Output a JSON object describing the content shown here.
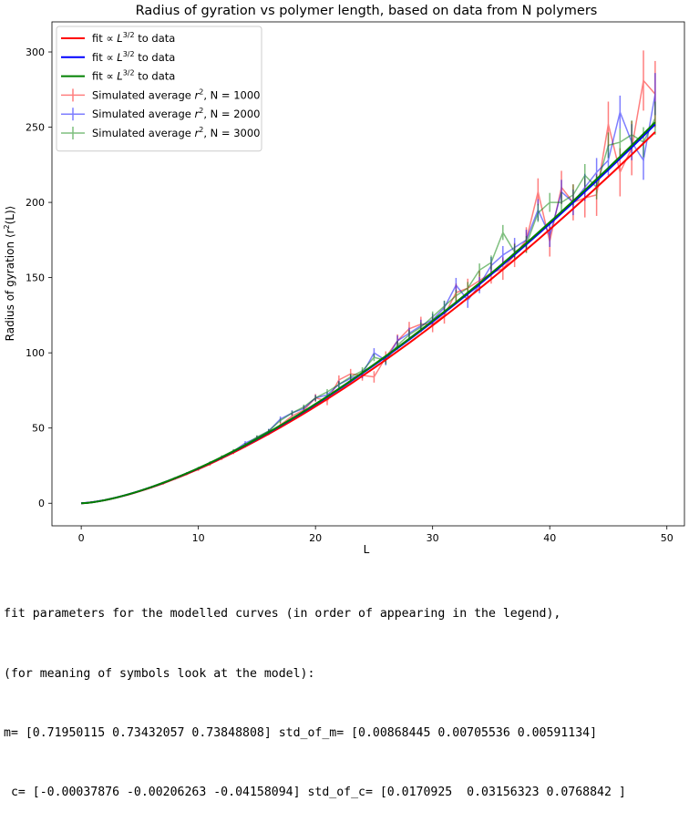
{
  "chart_data": {
    "type": "line",
    "title": "Radius of gyration vs polymer length, based on data from N polymers",
    "xlabel": "L",
    "ylabel": "Radius of gyration ⟨r²(L)⟩",
    "xlim": [
      -2.5,
      51.5
    ],
    "ylim": [
      -15,
      320
    ],
    "xticks": [
      0,
      10,
      20,
      30,
      40,
      50
    ],
    "yticks": [
      0,
      50,
      100,
      150,
      200,
      250,
      300
    ],
    "grid": false,
    "legend_position": "top-left",
    "fit_series": [
      {
        "name": "fit ∝ L^{3/2} to data",
        "name_prefix": "fit ∝ ",
        "name_base": "L",
        "name_sup": "3/2",
        "name_suffix": " to data",
        "color": "#ff0000",
        "m": 0.71950115,
        "c": -0.00037876
      },
      {
        "name": "fit ∝ L^{3/2} to data",
        "name_prefix": "fit ∝ ",
        "name_base": "L",
        "name_sup": "3/2",
        "name_suffix": " to data",
        "color": "#0000ff",
        "m": 0.73432057,
        "c": -0.00206263
      },
      {
        "name": "fit ∝ L^{3/2} to data",
        "name_prefix": "fit ∝ ",
        "name_base": "L",
        "name_sup": "3/2",
        "name_suffix": " to data",
        "color": "#008000",
        "m": 0.73848808,
        "c": -0.04158094
      }
    ],
    "data_series": [
      {
        "name": "Simulated average r², N = 1000",
        "name_prefix": "Simulated average ",
        "name_base": "r",
        "name_sup": "2",
        "name_suffix": ", N = 1000",
        "color": "#ff0000",
        "alpha": 0.5,
        "x": [
          0,
          1,
          2,
          3,
          4,
          5,
          6,
          7,
          8,
          9,
          10,
          11,
          12,
          13,
          14,
          15,
          16,
          17,
          18,
          19,
          20,
          21,
          22,
          23,
          24,
          25,
          26,
          27,
          28,
          29,
          30,
          31,
          32,
          33,
          34,
          35,
          36,
          37,
          38,
          39,
          40,
          41,
          42,
          43,
          44,
          45,
          46,
          47,
          48,
          49
        ],
        "y": [
          0,
          0.8,
          2,
          3.7,
          5.9,
          8,
          10.5,
          13,
          16.4,
          19.5,
          22.5,
          26,
          30,
          34,
          38.5,
          43,
          47,
          52,
          58,
          62,
          70,
          68,
          82,
          86,
          85,
          84,
          97,
          108,
          116,
          119,
          119,
          125,
          140,
          143,
          148,
          153,
          156,
          165,
          175,
          207,
          174,
          210,
          200,
          203,
          205,
          252,
          220,
          236,
          281,
          272
        ],
        "err": [
          0,
          0.1,
          0.2,
          0.3,
          0.4,
          0.5,
          0.6,
          0.7,
          0.8,
          0.9,
          1,
          1.1,
          1.2,
          1.4,
          1.5,
          1.7,
          1.8,
          2,
          2.2,
          2.4,
          2.6,
          2.8,
          3,
          3.3,
          3.5,
          3.8,
          4,
          4.3,
          4.6,
          5,
          5.3,
          5.6,
          6,
          6.3,
          6.7,
          7,
          7.5,
          8,
          8.5,
          9,
          10,
          11,
          12,
          13,
          14,
          15,
          16,
          18,
          20,
          22
        ]
      },
      {
        "name": "Simulated average r², N = 2000",
        "name_prefix": "Simulated average ",
        "name_base": "r",
        "name_sup": "2",
        "name_suffix": ", N = 2000",
        "color": "#0000ff",
        "alpha": 0.5,
        "x": [
          0,
          1,
          2,
          3,
          4,
          5,
          6,
          7,
          8,
          9,
          10,
          11,
          12,
          13,
          14,
          15,
          16,
          17,
          18,
          19,
          20,
          21,
          22,
          23,
          24,
          25,
          26,
          27,
          28,
          29,
          30,
          31,
          32,
          33,
          34,
          35,
          36,
          37,
          38,
          39,
          40,
          41,
          42,
          43,
          44,
          45,
          46,
          47,
          48,
          49
        ],
        "y": [
          0,
          0.8,
          2.1,
          3.8,
          6,
          8.2,
          10.8,
          13.5,
          16.5,
          19.8,
          23,
          26.8,
          30.5,
          34.5,
          40,
          43.5,
          48,
          56,
          60,
          63,
          70,
          72,
          79,
          83,
          86,
          100,
          95,
          108,
          113,
          118,
          122,
          130,
          145,
          135,
          145,
          158,
          165,
          170,
          175,
          195,
          178,
          207,
          200,
          210,
          220,
          228,
          260,
          240,
          228,
          272
        ],
        "err": [
          0,
          0.1,
          0.2,
          0.3,
          0.4,
          0.5,
          0.5,
          0.6,
          0.7,
          0.8,
          0.9,
          1,
          1.1,
          1.2,
          1.3,
          1.4,
          1.5,
          1.7,
          1.8,
          2,
          2.1,
          2.3,
          2.5,
          2.7,
          2.9,
          3.1,
          3.3,
          3.5,
          3.7,
          4,
          4.2,
          4.5,
          4.8,
          5.1,
          5.4,
          5.7,
          6,
          6.4,
          6.8,
          7.2,
          7.6,
          8,
          8.5,
          9,
          9.5,
          10,
          11,
          12,
          13,
          14
        ]
      },
      {
        "name": "Simulated average r², N = 3000",
        "name_prefix": "Simulated average ",
        "name_base": "r",
        "name_sup": "2",
        "name_suffix": ", N = 3000",
        "color": "#008000",
        "alpha": 0.5,
        "x": [
          0,
          1,
          2,
          3,
          4,
          5,
          6,
          7,
          8,
          9,
          10,
          11,
          12,
          13,
          14,
          15,
          16,
          17,
          18,
          19,
          20,
          21,
          22,
          23,
          24,
          25,
          26,
          27,
          28,
          29,
          30,
          31,
          32,
          33,
          34,
          35,
          36,
          37,
          38,
          39,
          40,
          41,
          42,
          43,
          44,
          45,
          46,
          47,
          48,
          49
        ],
        "y": [
          0,
          0.8,
          2.1,
          3.9,
          6,
          8.3,
          11,
          13.8,
          16.8,
          20,
          23.5,
          27,
          31,
          35,
          39,
          44,
          48,
          55,
          60,
          64,
          70,
          74,
          79,
          84,
          88,
          97,
          95,
          105,
          112,
          117,
          124,
          131,
          138,
          143,
          155,
          160,
          180,
          167,
          172,
          193,
          200,
          200,
          205,
          218,
          210,
          238,
          240,
          245,
          240,
          256
        ],
        "err": [
          0,
          0.1,
          0.1,
          0.2,
          0.3,
          0.4,
          0.4,
          0.5,
          0.6,
          0.6,
          0.7,
          0.8,
          0.9,
          1,
          1.1,
          1.2,
          1.3,
          1.4,
          1.5,
          1.6,
          1.7,
          1.9,
          2,
          2.2,
          2.4,
          2.5,
          2.7,
          2.9,
          3.1,
          3.3,
          3.5,
          3.7,
          3.9,
          4.1,
          4.4,
          4.7,
          5,
          5.3,
          5.6,
          6,
          6.3,
          6.7,
          7,
          7.5,
          8,
          8.5,
          9,
          9.5,
          10,
          11
        ]
      }
    ]
  },
  "output": {
    "lines": [
      "fit parameters for the modelled curves (in order of appearing in the legend),",
      "(for meaning of symbols look at the model):",
      "m= [0.71950115 0.73432057 0.73848808] std_of_m= [0.00868445 0.00705536 0.00591134]",
      " c= [-0.00037876 -0.00206263 -0.04158094] std_of_c= [0.0170925  0.03156323 0.0768842 ]"
    ]
  }
}
